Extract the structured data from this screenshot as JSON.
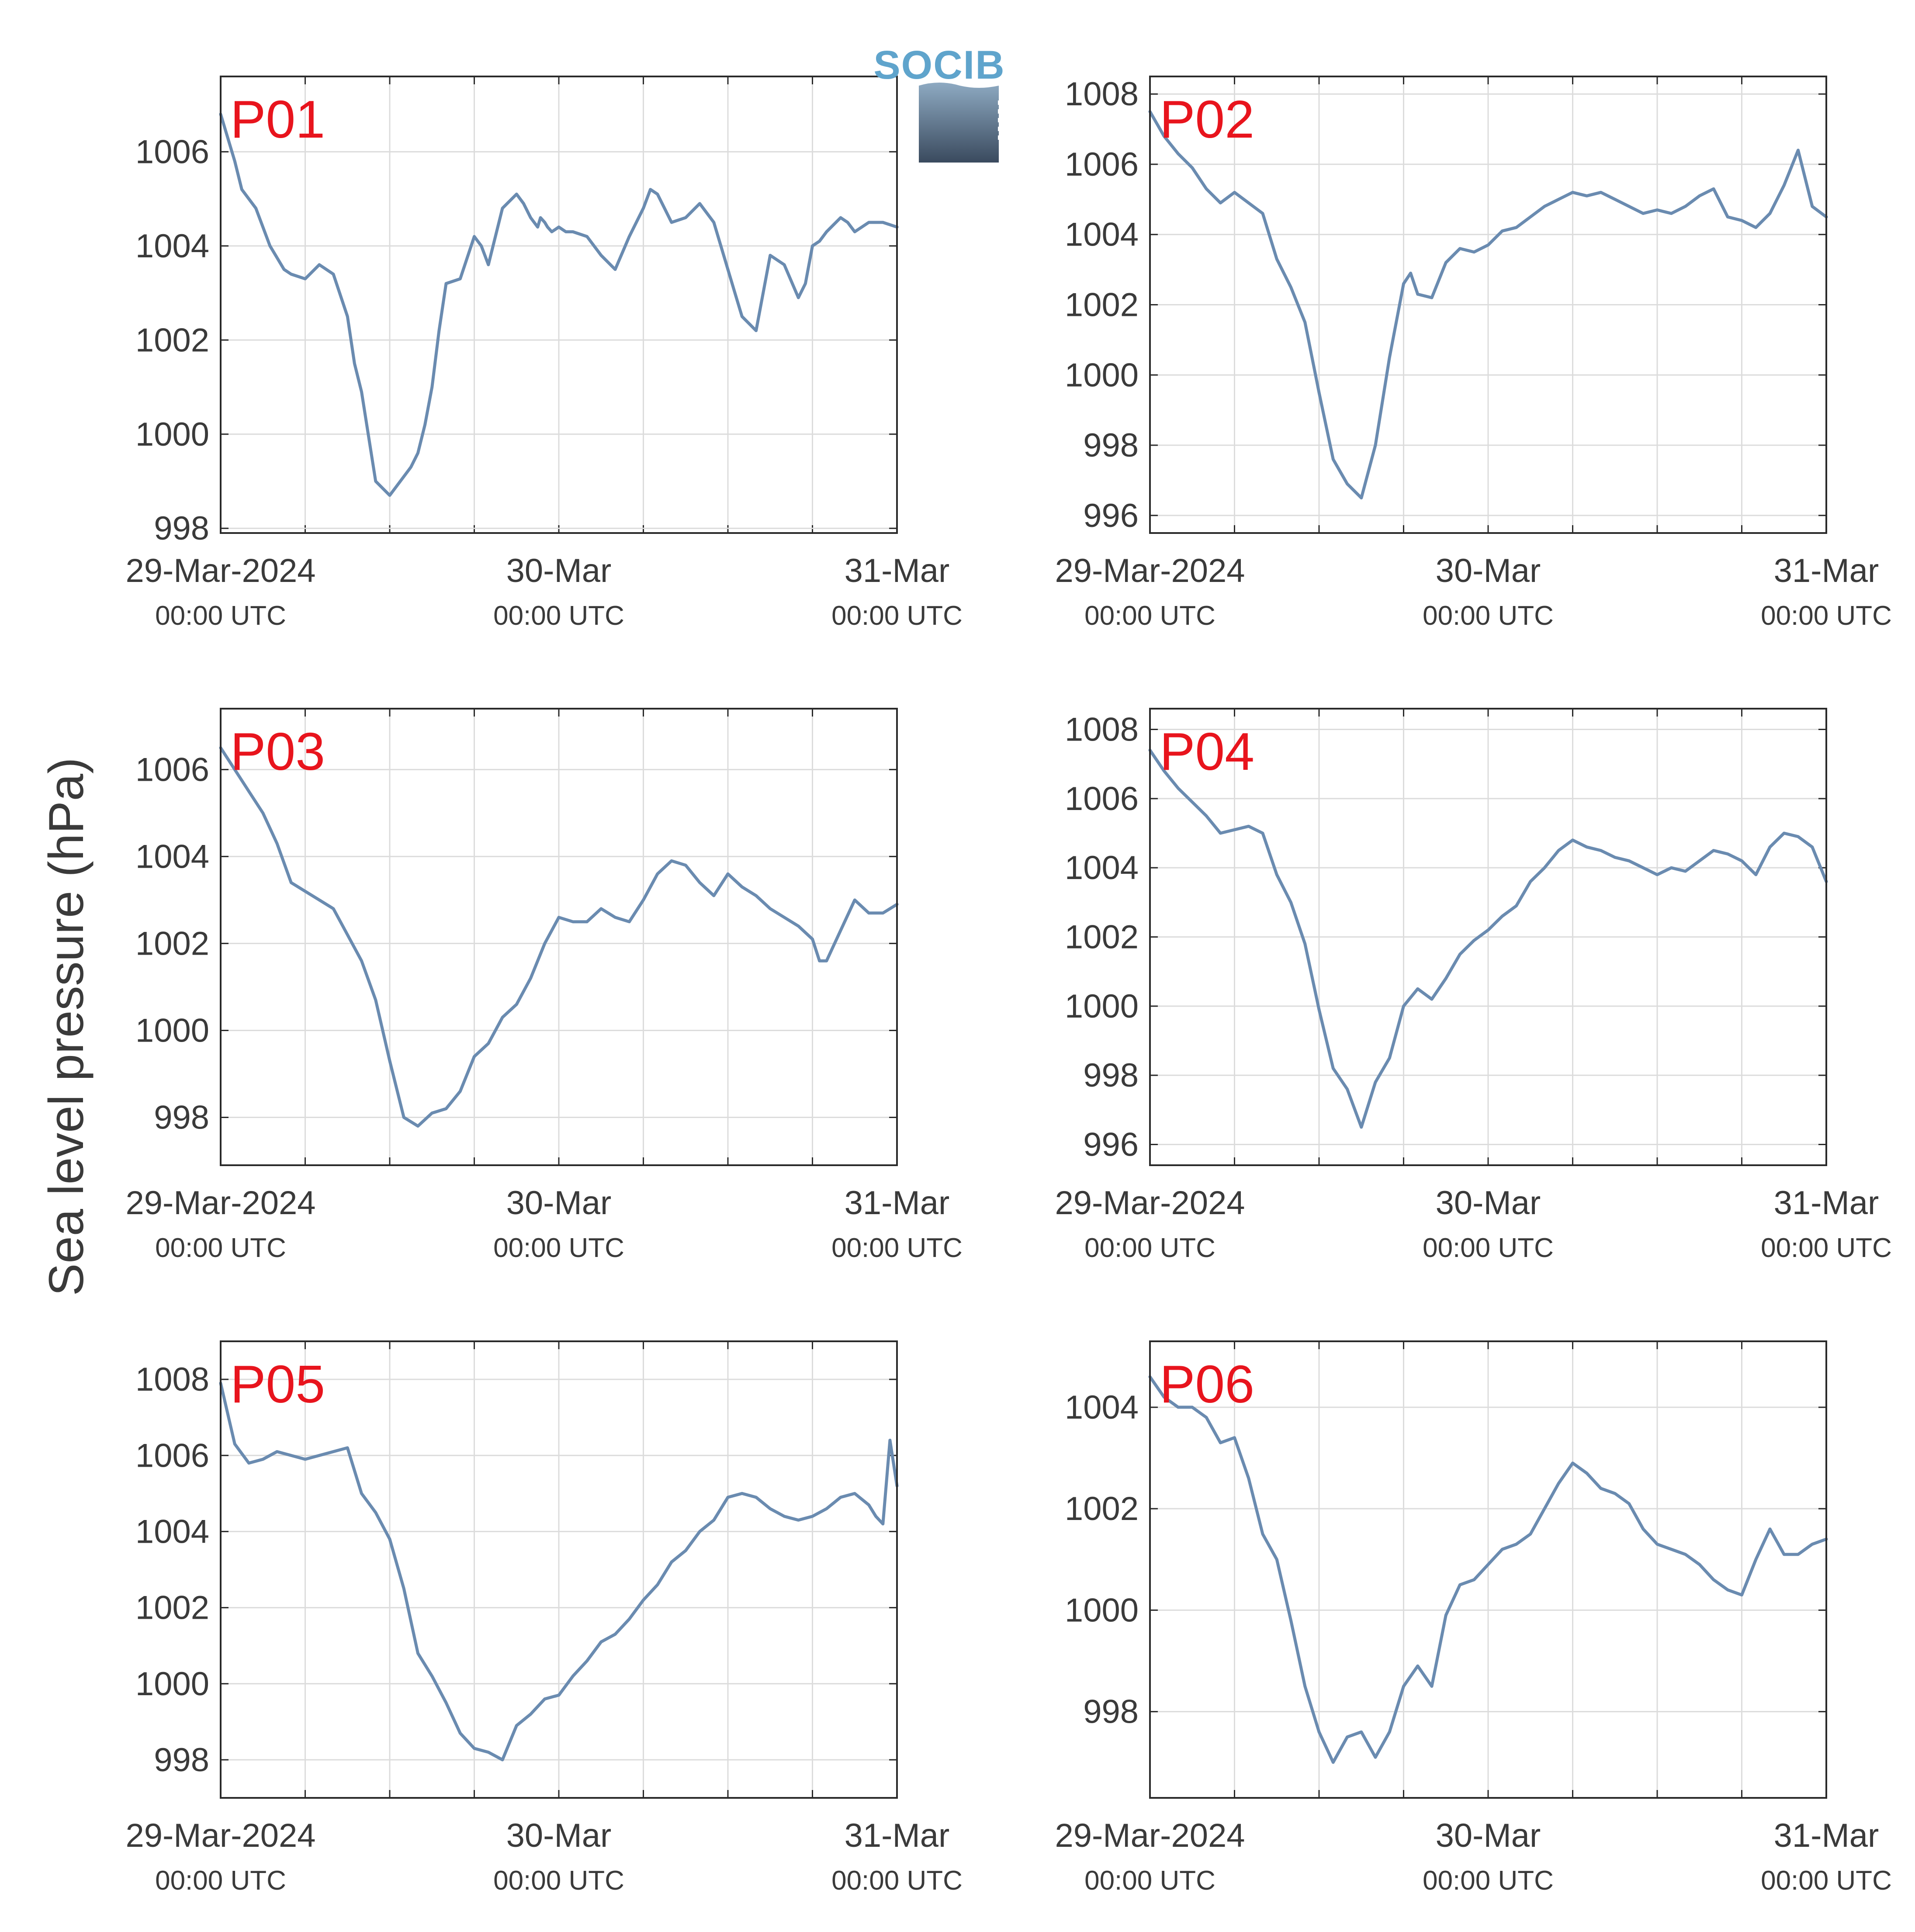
{
  "figure": {
    "ylabel": "Sea level pressure (hPa)",
    "logo": {
      "text": "SOCIB",
      "colors": {
        "text": "#5fa4cc",
        "top": "#8eaac2",
        "bottom": "#3a4a5e"
      }
    },
    "colors": {
      "line": "#6a8bb0",
      "grid": "#dcdcdc",
      "axis": "#2a2a2a",
      "panel_label": "#e8141d",
      "text": "#3a3a3a"
    }
  },
  "chart_data": [
    {
      "type": "line",
      "title": "P01",
      "ylim": [
        997.9,
        1007.6
      ],
      "yticks": [
        998,
        1000,
        1002,
        1004,
        1006
      ],
      "xlim": [
        0,
        48
      ],
      "grid": true,
      "xticks": [
        {
          "x": 0,
          "label": "29-Mar-2024",
          "sub": "00:00 UTC"
        },
        {
          "x": 24,
          "label": "30-Mar",
          "sub": "00:00 UTC"
        },
        {
          "x": 48,
          "label": "31-Mar",
          "sub": "00:00 UTC"
        }
      ],
      "series": [
        {
          "x": [
            0,
            1,
            1.5,
            2.5,
            3.5,
            4.5,
            5,
            6,
            7,
            8,
            9,
            9.5,
            10,
            11,
            12,
            13,
            13.5,
            14,
            14.5,
            15,
            15.5,
            16,
            17,
            18,
            18.5,
            19,
            20,
            21,
            21.5,
            22,
            22.5,
            22.7,
            23,
            23.2,
            23.5,
            24,
            24.5,
            25,
            26,
            27,
            28,
            29,
            30,
            30.5,
            31,
            32,
            33,
            34,
            35,
            36,
            36.5,
            37,
            38,
            39,
            40,
            41,
            41.5,
            42,
            42.5,
            43,
            44,
            44.5,
            45,
            46,
            47,
            48
          ],
          "values": [
            1006.8,
            1005.8,
            1005.2,
            1004.8,
            1004.0,
            1003.5,
            1003.4,
            1003.3,
            1003.6,
            1003.4,
            1002.5,
            1001.5,
            1000.9,
            999.0,
            998.7,
            999.1,
            999.3,
            999.6,
            1000.2,
            1001.0,
            1002.2,
            1003.2,
            1003.3,
            1004.2,
            1004.0,
            1003.6,
            1004.8,
            1005.1,
            1004.9,
            1004.6,
            1004.4,
            1004.6,
            1004.5,
            1004.4,
            1004.3,
            1004.4,
            1004.3,
            1004.3,
            1004.2,
            1003.8,
            1003.5,
            1004.2,
            1004.8,
            1005.2,
            1005.1,
            1004.5,
            1004.6,
            1004.9,
            1004.5,
            1003.5,
            1003.0,
            1002.5,
            1002.2,
            1003.8,
            1003.6,
            1002.9,
            1003.2,
            1004.0,
            1004.1,
            1004.3,
            1004.6,
            1004.5,
            1004.3,
            1004.5,
            1004.5,
            1004.4
          ]
        }
      ]
    },
    {
      "type": "line",
      "title": "P02",
      "ylim": [
        995.5,
        1008.5
      ],
      "yticks": [
        996,
        998,
        1000,
        1002,
        1004,
        1006,
        1008
      ],
      "xlim": [
        0,
        48
      ],
      "grid": true,
      "xticks": [
        {
          "x": 0,
          "label": "29-Mar-2024",
          "sub": "00:00 UTC"
        },
        {
          "x": 24,
          "label": "30-Mar",
          "sub": "00:00 UTC"
        },
        {
          "x": 48,
          "label": "31-Mar",
          "sub": "00:00 UTC"
        }
      ],
      "series": [
        {
          "x": [
            0,
            1,
            2,
            3,
            4,
            5,
            6,
            7,
            8,
            9,
            10,
            11,
            12,
            13,
            14,
            15,
            16,
            17,
            18,
            18.5,
            19,
            20,
            21,
            22,
            23,
            24,
            25,
            26,
            27,
            28,
            29,
            30,
            31,
            32,
            33,
            34,
            35,
            36,
            37,
            38,
            39,
            40,
            41,
            42,
            43,
            44,
            45,
            46,
            47,
            48
          ],
          "values": [
            1007.5,
            1006.8,
            1006.3,
            1005.9,
            1005.3,
            1004.9,
            1005.2,
            1004.9,
            1004.6,
            1003.3,
            1002.5,
            1001.5,
            999.5,
            997.6,
            996.9,
            996.5,
            998.0,
            1000.5,
            1002.6,
            1002.9,
            1002.3,
            1002.2,
            1003.2,
            1003.6,
            1003.5,
            1003.7,
            1004.1,
            1004.2,
            1004.5,
            1004.8,
            1005.0,
            1005.2,
            1005.1,
            1005.2,
            1005.0,
            1004.8,
            1004.6,
            1004.7,
            1004.6,
            1004.8,
            1005.1,
            1005.3,
            1004.5,
            1004.4,
            1004.2,
            1004.6,
            1005.4,
            1006.4,
            1004.8,
            1004.5
          ]
        }
      ]
    },
    {
      "type": "line",
      "title": "P03",
      "ylim": [
        996.9,
        1007.4
      ],
      "yticks": [
        998,
        1000,
        1002,
        1004,
        1006
      ],
      "xlim": [
        0,
        48
      ],
      "grid": true,
      "xticks": [
        {
          "x": 0,
          "label": "29-Mar-2024",
          "sub": "00:00 UTC"
        },
        {
          "x": 24,
          "label": "30-Mar",
          "sub": "00:00 UTC"
        },
        {
          "x": 48,
          "label": "31-Mar",
          "sub": "00:00 UTC"
        }
      ],
      "series": [
        {
          "x": [
            0,
            1,
            2,
            3,
            4,
            5,
            6,
            7,
            8,
            9,
            10,
            11,
            12,
            13,
            14,
            15,
            16,
            17,
            18,
            19,
            20,
            21,
            22,
            23,
            24,
            25,
            26,
            27,
            28,
            29,
            30,
            31,
            32,
            33,
            34,
            35,
            36,
            37,
            38,
            39,
            40,
            41,
            42,
            42.5,
            43,
            44,
            45,
            46,
            47,
            48
          ],
          "values": [
            1006.5,
            1006.0,
            1005.5,
            1005.0,
            1004.3,
            1003.4,
            1003.2,
            1003.0,
            1002.8,
            1002.2,
            1001.6,
            1000.7,
            999.3,
            998.0,
            997.8,
            998.1,
            998.2,
            998.6,
            999.4,
            999.7,
            1000.3,
            1000.6,
            1001.2,
            1002.0,
            1002.6,
            1002.5,
            1002.5,
            1002.8,
            1002.6,
            1002.5,
            1003.0,
            1003.6,
            1003.9,
            1003.8,
            1003.4,
            1003.1,
            1003.6,
            1003.3,
            1003.1,
            1002.8,
            1002.6,
            1002.4,
            1002.1,
            1001.6,
            1001.6,
            1002.3,
            1003.0,
            1002.7,
            1002.7,
            1002.9
          ]
        }
      ]
    },
    {
      "type": "line",
      "title": "P04",
      "ylim": [
        995.4,
        1008.6
      ],
      "yticks": [
        996,
        998,
        1000,
        1002,
        1004,
        1006,
        1008
      ],
      "xlim": [
        0,
        48
      ],
      "grid": true,
      "xticks": [
        {
          "x": 0,
          "label": "29-Mar-2024",
          "sub": "00:00 UTC"
        },
        {
          "x": 24,
          "label": "30-Mar",
          "sub": "00:00 UTC"
        },
        {
          "x": 48,
          "label": "31-Mar",
          "sub": "00:00 UTC"
        }
      ],
      "series": [
        {
          "x": [
            0,
            1,
            2,
            3,
            4,
            5,
            6,
            7,
            8,
            9,
            10,
            11,
            12,
            13,
            14,
            15,
            16,
            17,
            18,
            19,
            20,
            21,
            22,
            23,
            24,
            25,
            26,
            27,
            28,
            29,
            30,
            31,
            32,
            33,
            34,
            35,
            36,
            37,
            38,
            39,
            40,
            41,
            42,
            43,
            44,
            45,
            46,
            47,
            48
          ],
          "values": [
            1007.4,
            1006.8,
            1006.3,
            1005.9,
            1005.5,
            1005.0,
            1005.1,
            1005.2,
            1005.0,
            1003.8,
            1003.0,
            1001.8,
            999.9,
            998.2,
            997.6,
            996.5,
            997.8,
            998.5,
            1000.0,
            1000.5,
            1000.2,
            1000.8,
            1001.5,
            1001.9,
            1002.2,
            1002.6,
            1002.9,
            1003.6,
            1004.0,
            1004.5,
            1004.8,
            1004.6,
            1004.5,
            1004.3,
            1004.2,
            1004.0,
            1003.8,
            1004.0,
            1003.9,
            1004.2,
            1004.5,
            1004.4,
            1004.2,
            1003.8,
            1004.6,
            1005.0,
            1004.9,
            1004.6,
            1003.6
          ]
        }
      ]
    },
    {
      "type": "line",
      "title": "P05",
      "ylim": [
        997.0,
        1009.0
      ],
      "yticks": [
        998,
        1000,
        1002,
        1004,
        1006,
        1008
      ],
      "xlim": [
        0,
        48
      ],
      "grid": true,
      "xticks": [
        {
          "x": 0,
          "label": "29-Mar-2024",
          "sub": "00:00 UTC"
        },
        {
          "x": 24,
          "label": "30-Mar",
          "sub": "00:00 UTC"
        },
        {
          "x": 48,
          "label": "31-Mar",
          "sub": "00:00 UTC"
        }
      ],
      "series": [
        {
          "x": [
            0,
            1,
            2,
            3,
            4,
            5,
            6,
            7,
            8,
            9,
            10,
            11,
            12,
            13,
            14,
            15,
            16,
            17,
            18,
            19,
            20,
            21,
            22,
            23,
            24,
            25,
            26,
            27,
            28,
            29,
            30,
            31,
            32,
            33,
            34,
            35,
            36,
            37,
            38,
            39,
            40,
            41,
            42,
            43,
            44,
            45,
            46,
            46.5,
            47,
            47.5,
            48
          ],
          "values": [
            1007.9,
            1006.3,
            1005.8,
            1005.9,
            1006.1,
            1006.0,
            1005.9,
            1006.0,
            1006.1,
            1006.2,
            1005.0,
            1004.5,
            1003.8,
            1002.5,
            1000.8,
            1000.2,
            999.5,
            998.7,
            998.3,
            998.2,
            998.0,
            998.9,
            999.2,
            999.6,
            999.7,
            1000.2,
            1000.6,
            1001.1,
            1001.3,
            1001.7,
            1002.2,
            1002.6,
            1003.2,
            1003.5,
            1004.0,
            1004.3,
            1004.9,
            1005.0,
            1004.9,
            1004.6,
            1004.4,
            1004.3,
            1004.4,
            1004.6,
            1004.9,
            1005.0,
            1004.7,
            1004.4,
            1004.2,
            1006.4,
            1005.2
          ]
        }
      ]
    },
    {
      "type": "line",
      "title": "P06",
      "ylim": [
        996.3,
        1005.3
      ],
      "yticks": [
        998,
        1000,
        1002,
        1004
      ],
      "xlim": [
        0,
        48
      ],
      "grid": true,
      "xticks": [
        {
          "x": 0,
          "label": "29-Mar-2024",
          "sub": "00:00 UTC"
        },
        {
          "x": 24,
          "label": "30-Mar",
          "sub": "00:00 UTC"
        },
        {
          "x": 48,
          "label": "31-Mar",
          "sub": "00:00 UTC"
        }
      ],
      "series": [
        {
          "x": [
            0,
            1,
            2,
            3,
            4,
            5,
            6,
            7,
            8,
            9,
            10,
            11,
            12,
            13,
            14,
            15,
            16,
            17,
            18,
            19,
            20,
            21,
            22,
            23,
            24,
            25,
            26,
            27,
            28,
            29,
            30,
            31,
            32,
            33,
            34,
            35,
            36,
            37,
            38,
            39,
            40,
            41,
            42,
            43,
            44,
            45,
            46,
            47,
            48
          ],
          "values": [
            1004.6,
            1004.2,
            1004.0,
            1004.0,
            1003.8,
            1003.3,
            1003.4,
            1002.6,
            1001.5,
            1001.0,
            999.8,
            998.5,
            997.6,
            997.0,
            997.5,
            997.6,
            997.1,
            997.6,
            998.5,
            998.9,
            998.5,
            999.9,
            1000.5,
            1000.6,
            1000.9,
            1001.2,
            1001.3,
            1001.5,
            1002.0,
            1002.5,
            1002.9,
            1002.7,
            1002.4,
            1002.3,
            1002.1,
            1001.6,
            1001.3,
            1001.2,
            1001.1,
            1000.9,
            1000.6,
            1000.4,
            1000.3,
            1001.0,
            1001.6,
            1001.1,
            1001.1,
            1001.3,
            1001.4
          ]
        }
      ]
    }
  ]
}
